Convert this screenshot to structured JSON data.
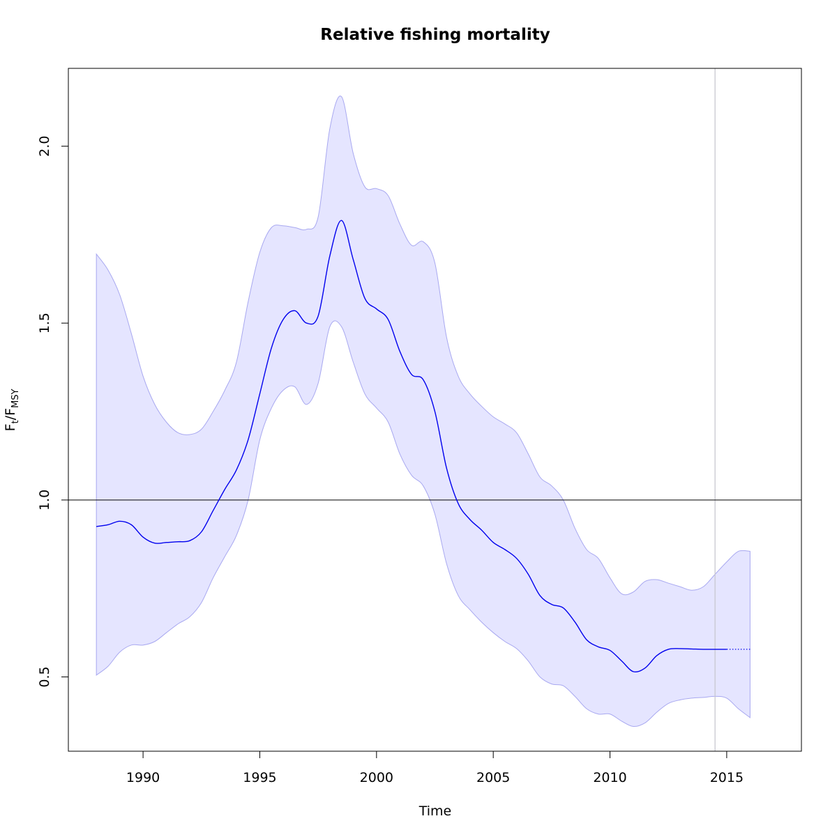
{
  "chart_data": {
    "type": "line",
    "title": "Relative fishing mortality",
    "xlabel": "Time",
    "ylabel": {
      "main_1": "F",
      "sub_1": "t",
      "main_2": "/F",
      "sub_2": "MSY"
    },
    "xlim": [
      1986.8,
      2018.2
    ],
    "ylim": [
      0.29,
      2.22
    ],
    "x_ticks": [
      1990,
      1995,
      2000,
      2005,
      2010,
      2015
    ],
    "y_ticks": [
      0.5,
      1.0,
      1.5,
      2.0
    ],
    "x_tick_labels": [
      "1990",
      "1995",
      "2000",
      "2005",
      "2010",
      "2015"
    ],
    "y_tick_labels": [
      "0.5",
      "1.0",
      "1.5",
      "2.0"
    ],
    "reference_line_y": 1.0,
    "vertical_line_x": 2014.5,
    "grid": false,
    "colors": {
      "estimate": "#0000ee",
      "band_fill": "#e5e5ff",
      "band_edge": "#a8a8f0",
      "vline": "#c8c8d0",
      "hline": "#000000"
    },
    "series": [
      {
        "role": "estimate",
        "x": [
          1988.0,
          1988.5,
          1989.0,
          1989.5,
          1990.0,
          1990.5,
          1991.0,
          1991.5,
          1992.0,
          1992.5,
          1993.0,
          1993.5,
          1994.0,
          1994.5,
          1995.0,
          1995.5,
          1996.0,
          1996.5,
          1997.0,
          1997.5,
          1998.0,
          1998.5,
          1999.0,
          1999.5,
          2000.0,
          2000.5,
          2001.0,
          2001.5,
          2002.0,
          2002.5,
          2003.0,
          2003.5,
          2004.0,
          2004.5,
          2005.0,
          2005.5,
          2006.0,
          2006.5,
          2007.0,
          2007.5,
          2008.0,
          2008.5,
          2009.0,
          2009.5,
          2010.0,
          2010.5,
          2011.0,
          2011.5,
          2012.0,
          2012.5,
          2013.0,
          2013.5,
          2014.0,
          2014.5,
          2015.0
        ],
        "y": [
          0.925,
          0.93,
          0.94,
          0.93,
          0.895,
          0.878,
          0.88,
          0.882,
          0.885,
          0.91,
          0.97,
          1.03,
          1.085,
          1.17,
          1.3,
          1.43,
          1.51,
          1.535,
          1.5,
          1.52,
          1.69,
          1.79,
          1.68,
          1.57,
          1.54,
          1.51,
          1.42,
          1.355,
          1.34,
          1.25,
          1.09,
          0.99,
          0.945,
          0.915,
          0.88,
          0.86,
          0.835,
          0.79,
          0.73,
          0.705,
          0.695,
          0.655,
          0.605,
          0.585,
          0.575,
          0.545,
          0.515,
          0.525,
          0.56,
          0.578,
          0.58,
          0.579,
          0.578,
          0.578,
          0.578
        ]
      },
      {
        "role": "forecast",
        "x": [
          2015.0,
          2016.0
        ],
        "y": [
          0.578,
          0.578
        ]
      },
      {
        "role": "upper",
        "x": [
          1988.0,
          1988.5,
          1989.0,
          1989.5,
          1990.0,
          1990.5,
          1991.0,
          1991.5,
          1992.0,
          1992.5,
          1993.0,
          1993.5,
          1994.0,
          1994.5,
          1995.0,
          1995.5,
          1996.0,
          1996.5,
          1997.0,
          1997.5,
          1998.0,
          1998.5,
          1999.0,
          1999.5,
          2000.0,
          2000.5,
          2001.0,
          2001.5,
          2002.0,
          2002.5,
          2003.0,
          2003.5,
          2004.0,
          2004.5,
          2005.0,
          2005.5,
          2006.0,
          2006.5,
          2007.0,
          2007.5,
          2008.0,
          2008.5,
          2009.0,
          2009.5,
          2010.0,
          2010.5,
          2011.0,
          2011.5,
          2012.0,
          2012.5,
          2013.0,
          2013.5,
          2014.0,
          2014.5,
          2015.0,
          2015.5,
          2016.0
        ],
        "y": [
          1.695,
          1.65,
          1.58,
          1.47,
          1.35,
          1.27,
          1.22,
          1.19,
          1.185,
          1.2,
          1.25,
          1.31,
          1.39,
          1.56,
          1.7,
          1.77,
          1.775,
          1.77,
          1.765,
          1.8,
          2.05,
          2.14,
          1.98,
          1.885,
          1.88,
          1.86,
          1.78,
          1.72,
          1.73,
          1.67,
          1.46,
          1.35,
          1.3,
          1.265,
          1.235,
          1.215,
          1.19,
          1.13,
          1.065,
          1.04,
          1.0,
          0.92,
          0.86,
          0.835,
          0.78,
          0.735,
          0.74,
          0.77,
          0.775,
          0.765,
          0.755,
          0.745,
          0.755,
          0.79,
          0.825,
          0.855,
          0.855
        ]
      },
      {
        "role": "lower",
        "x": [
          1988.0,
          1988.5,
          1989.0,
          1989.5,
          1990.0,
          1990.5,
          1991.0,
          1991.5,
          1992.0,
          1992.5,
          1993.0,
          1993.5,
          1994.0,
          1994.5,
          1995.0,
          1995.5,
          1996.0,
          1996.5,
          1997.0,
          1997.5,
          1998.0,
          1998.5,
          1999.0,
          1999.5,
          2000.0,
          2000.5,
          2001.0,
          2001.5,
          2002.0,
          2002.5,
          2003.0,
          2003.5,
          2004.0,
          2004.5,
          2005.0,
          2005.5,
          2006.0,
          2006.5,
          2007.0,
          2007.5,
          2008.0,
          2008.5,
          2009.0,
          2009.5,
          2010.0,
          2010.5,
          2011.0,
          2011.5,
          2012.0,
          2012.5,
          2013.0,
          2013.5,
          2014.0,
          2014.5,
          2015.0,
          2015.5,
          2016.0
        ],
        "y": [
          0.505,
          0.53,
          0.57,
          0.59,
          0.59,
          0.6,
          0.625,
          0.65,
          0.67,
          0.71,
          0.78,
          0.84,
          0.9,
          1.0,
          1.17,
          1.26,
          1.31,
          1.32,
          1.27,
          1.33,
          1.49,
          1.49,
          1.39,
          1.3,
          1.26,
          1.22,
          1.13,
          1.07,
          1.04,
          0.96,
          0.82,
          0.73,
          0.69,
          0.655,
          0.625,
          0.6,
          0.58,
          0.545,
          0.5,
          0.48,
          0.475,
          0.445,
          0.41,
          0.395,
          0.395,
          0.375,
          0.36,
          0.37,
          0.4,
          0.425,
          0.435,
          0.44,
          0.442,
          0.445,
          0.44,
          0.41,
          0.385
        ]
      }
    ]
  }
}
